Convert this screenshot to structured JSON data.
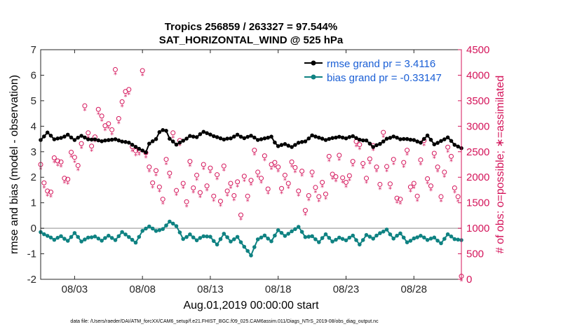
{
  "chart_data": {
    "type": "line",
    "title": "Tropics 256859 / 263327 = 97.544%",
    "subtitle": "SAT_HORIZONTAL_WIND @ 525 hPa",
    "xlabel": "Aug.01,2019 00:00:00 start",
    "ylabel": "rmse and bias (model - observation)",
    "ylabel_right": "# of obs: o=possible; ∗=assimilated",
    "xlim": [
      0.5,
      31.5
    ],
    "ylim": [
      -2,
      7
    ],
    "ylim_right": [
      0,
      4500
    ],
    "x_ticks": [
      {
        "value": 3,
        "label": "08/03"
      },
      {
        "value": 8,
        "label": "08/08"
      },
      {
        "value": 13,
        "label": "08/13"
      },
      {
        "value": 18,
        "label": "08/18"
      },
      {
        "value": 23,
        "label": "08/23"
      },
      {
        "value": 28,
        "label": "08/28"
      }
    ],
    "y_ticks": [
      "-2",
      "-1",
      "0",
      "1",
      "2",
      "3",
      "4",
      "5",
      "6",
      "7"
    ],
    "y_ticks_right": [
      "0",
      "500",
      "1000",
      "1500",
      "2000",
      "2500",
      "3000",
      "3500",
      "4000",
      "4500"
    ],
    "zero_line": 0,
    "grid": false,
    "legend_position": "top-right",
    "colors": {
      "rmse": "#000000",
      "bias": "#0f8282",
      "obs": "#d4145a",
      "legend_text": "#1a5fd6",
      "zero_line": "#b4b4b4"
    },
    "rmse_knots": [
      [
        0.5,
        3.5
      ],
      [
        1.0,
        3.75
      ],
      [
        1.5,
        3.45
      ],
      [
        2.0,
        3.55
      ],
      [
        2.5,
        3.7
      ],
      [
        3.0,
        3.45
      ],
      [
        3.5,
        3.6
      ],
      [
        4.0,
        3.5
      ],
      [
        4.5,
        3.5
      ],
      [
        5.0,
        3.4
      ],
      [
        5.5,
        3.45
      ],
      [
        6.0,
        3.5
      ],
      [
        6.5,
        3.4
      ],
      [
        7.0,
        3.35
      ],
      [
        7.5,
        3.2
      ],
      [
        8.0,
        3.05
      ],
      [
        8.2,
        2.9
      ],
      [
        8.5,
        3.3
      ],
      [
        9.0,
        3.5
      ],
      [
        9.3,
        3.85
      ],
      [
        9.7,
        3.9
      ],
      [
        10.0,
        3.5
      ],
      [
        10.5,
        3.25
      ],
      [
        11.0,
        3.45
      ],
      [
        11.5,
        3.65
      ],
      [
        12.0,
        3.55
      ],
      [
        12.5,
        3.75
      ],
      [
        13.0,
        3.7
      ],
      [
        13.5,
        3.6
      ],
      [
        14.0,
        3.45
      ],
      [
        14.5,
        3.5
      ],
      [
        15.0,
        3.7
      ],
      [
        15.5,
        3.55
      ],
      [
        16.0,
        3.6
      ],
      [
        16.5,
        3.45
      ],
      [
        17.0,
        3.55
      ],
      [
        17.5,
        3.6
      ],
      [
        17.8,
        3.3
      ],
      [
        18.0,
        3.2
      ],
      [
        18.5,
        3.3
      ],
      [
        19.0,
        3.2
      ],
      [
        19.5,
        3.35
      ],
      [
        20.0,
        3.4
      ],
      [
        20.5,
        3.65
      ],
      [
        21.0,
        3.55
      ],
      [
        21.5,
        3.45
      ],
      [
        22.0,
        3.55
      ],
      [
        22.5,
        3.6
      ],
      [
        23.0,
        3.5
      ],
      [
        23.5,
        3.6
      ],
      [
        24.0,
        3.5
      ],
      [
        24.5,
        3.45
      ],
      [
        25.0,
        3.15
      ],
      [
        25.5,
        3.3
      ],
      [
        26.0,
        3.55
      ],
      [
        26.5,
        3.6
      ],
      [
        27.0,
        3.45
      ],
      [
        27.5,
        3.5
      ],
      [
        28.0,
        3.5
      ],
      [
        28.5,
        3.35
      ],
      [
        29.0,
        3.6
      ],
      [
        29.5,
        3.3
      ],
      [
        30.0,
        3.45
      ],
      [
        30.5,
        3.55
      ],
      [
        31.0,
        3.25
      ],
      [
        31.5,
        3.15
      ]
    ],
    "bias_knots": [
      [
        0.5,
        -0.1
      ],
      [
        1.0,
        -0.3
      ],
      [
        1.5,
        -0.5
      ],
      [
        2.0,
        -0.3
      ],
      [
        2.5,
        -0.45
      ],
      [
        3.0,
        -0.2
      ],
      [
        3.5,
        -0.55
      ],
      [
        4.0,
        -0.35
      ],
      [
        4.5,
        -0.3
      ],
      [
        5.0,
        -0.5
      ],
      [
        5.5,
        -0.3
      ],
      [
        6.0,
        -0.45
      ],
      [
        6.5,
        -0.15
      ],
      [
        7.0,
        -0.35
      ],
      [
        7.5,
        -0.55
      ],
      [
        8.0,
        -0.1
      ],
      [
        8.5,
        0.05
      ],
      [
        9.0,
        -0.1
      ],
      [
        9.5,
        0.0
      ],
      [
        10.0,
        0.25
      ],
      [
        10.5,
        0.05
      ],
      [
        11.0,
        -0.4
      ],
      [
        11.5,
        -0.2
      ],
      [
        12.0,
        -0.5
      ],
      [
        12.5,
        -0.35
      ],
      [
        13.0,
        -0.3
      ],
      [
        13.5,
        -0.6
      ],
      [
        14.0,
        -0.25
      ],
      [
        14.5,
        -0.55
      ],
      [
        15.0,
        -0.3
      ],
      [
        15.5,
        -0.7
      ],
      [
        16.0,
        -1.1
      ],
      [
        16.5,
        -0.45
      ],
      [
        17.0,
        -0.25
      ],
      [
        17.5,
        -0.5
      ],
      [
        18.0,
        -0.1
      ],
      [
        18.5,
        -0.3
      ],
      [
        19.0,
        -0.1
      ],
      [
        19.5,
        0.05
      ],
      [
        20.0,
        -0.35
      ],
      [
        20.5,
        -0.3
      ],
      [
        21.0,
        -0.55
      ],
      [
        21.5,
        -0.25
      ],
      [
        22.0,
        -0.5
      ],
      [
        22.5,
        -0.35
      ],
      [
        23.0,
        -0.5
      ],
      [
        23.5,
        -0.3
      ],
      [
        24.0,
        -0.6
      ],
      [
        24.5,
        -0.25
      ],
      [
        25.0,
        -0.45
      ],
      [
        25.5,
        -0.2
      ],
      [
        26.0,
        0.0
      ],
      [
        26.5,
        -0.4
      ],
      [
        27.0,
        -0.25
      ],
      [
        27.5,
        -0.55
      ],
      [
        28.0,
        -0.35
      ],
      [
        28.5,
        -0.3
      ],
      [
        29.0,
        -0.5
      ],
      [
        29.5,
        -0.35
      ],
      [
        30.0,
        -0.55
      ],
      [
        30.5,
        -0.25
      ],
      [
        31.0,
        -0.45
      ],
      [
        31.5,
        -0.45
      ]
    ],
    "obs_possible": [
      [
        0.5,
        2250
      ],
      [
        0.75,
        1890
      ],
      [
        1.0,
        1730
      ],
      [
        1.25,
        1710
      ],
      [
        1.5,
        2380
      ],
      [
        1.75,
        2320
      ],
      [
        2.0,
        2300
      ],
      [
        2.25,
        1980
      ],
      [
        2.5,
        1960
      ],
      [
        2.75,
        2490
      ],
      [
        3.0,
        2390
      ],
      [
        3.25,
        2230
      ],
      [
        3.5,
        2660
      ],
      [
        3.75,
        3400
      ],
      [
        4.0,
        2870
      ],
      [
        4.25,
        2610
      ],
      [
        4.5,
        2790
      ],
      [
        4.75,
        3330
      ],
      [
        5.0,
        3200
      ],
      [
        5.25,
        3010
      ],
      [
        5.5,
        3050
      ],
      [
        5.75,
        2930
      ],
      [
        6.0,
        4110
      ],
      [
        6.25,
        3150
      ],
      [
        6.5,
        3480
      ],
      [
        6.75,
        3680
      ],
      [
        7.0,
        3720
      ],
      [
        7.25,
        2600
      ],
      [
        7.5,
        2520
      ],
      [
        7.75,
        2530
      ],
      [
        8.0,
        4090
      ],
      [
        8.25,
        2480
      ],
      [
        8.5,
        2200
      ],
      [
        8.75,
        1890
      ],
      [
        9.0,
        2130
      ],
      [
        9.25,
        1810
      ],
      [
        9.5,
        1570
      ],
      [
        9.75,
        2350
      ],
      [
        10.0,
        2080
      ],
      [
        10.25,
        2870
      ],
      [
        10.5,
        1740
      ],
      [
        10.75,
        2720
      ],
      [
        11.0,
        1880
      ],
      [
        11.25,
        1520
      ],
      [
        11.5,
        2310
      ],
      [
        11.75,
        1790
      ],
      [
        12.0,
        2040
      ],
      [
        12.25,
        1700
      ],
      [
        12.5,
        2250
      ],
      [
        12.75,
        1830
      ],
      [
        13.0,
        2180
      ],
      [
        13.25,
        1630
      ],
      [
        13.5,
        2050
      ],
      [
        13.75,
        1530
      ],
      [
        14.0,
        2220
      ],
      [
        14.25,
        1730
      ],
      [
        14.5,
        1880
      ],
      [
        14.75,
        1640
      ],
      [
        15.0,
        1910
      ],
      [
        15.25,
        1260
      ],
      [
        15.5,
        2020
      ],
      [
        15.75,
        1630
      ],
      [
        16.0,
        1940
      ],
      [
        16.25,
        2530
      ],
      [
        16.5,
        2100
      ],
      [
        16.75,
        1980
      ],
      [
        17.0,
        2420
      ],
      [
        17.25,
        1770
      ],
      [
        17.5,
        2250
      ],
      [
        17.75,
        2290
      ],
      [
        18.0,
        2200
      ],
      [
        18.25,
        1780
      ],
      [
        18.5,
        2040
      ],
      [
        18.75,
        1880
      ],
      [
        19.0,
        2300
      ],
      [
        19.25,
        2190
      ],
      [
        19.5,
        1730
      ],
      [
        19.75,
        2120
      ],
      [
        20.0,
        1350
      ],
      [
        20.25,
        1640
      ],
      [
        20.5,
        2100
      ],
      [
        20.75,
        1800
      ],
      [
        21.0,
        1620
      ],
      [
        21.25,
        1900
      ],
      [
        21.5,
        1670
      ],
      [
        21.75,
        2410
      ],
      [
        22.0,
        2060
      ],
      [
        22.25,
        2010
      ],
      [
        22.5,
        2430
      ],
      [
        22.75,
        1990
      ],
      [
        23.0,
        1900
      ],
      [
        23.25,
        2030
      ],
      [
        23.5,
        2310
      ],
      [
        23.75,
        2700
      ],
      [
        24.0,
        2640
      ],
      [
        24.25,
        2270
      ],
      [
        24.5,
        1980
      ],
      [
        24.75,
        2360
      ],
      [
        25.0,
        2620
      ],
      [
        25.25,
        2200
      ],
      [
        25.5,
        1860
      ],
      [
        25.75,
        2880
      ],
      [
        26.0,
        2210
      ],
      [
        26.25,
        1870
      ],
      [
        26.5,
        2350
      ],
      [
        26.75,
        1590
      ],
      [
        27.0,
        1570
      ],
      [
        27.25,
        2290
      ],
      [
        27.5,
        2530
      ],
      [
        27.75,
        1810
      ],
      [
        28.0,
        1880
      ],
      [
        28.25,
        1630
      ],
      [
        28.5,
        2340
      ],
      [
        28.75,
        2720
      ],
      [
        29.0,
        1970
      ],
      [
        29.25,
        1830
      ],
      [
        29.5,
        2470
      ],
      [
        29.75,
        2200
      ],
      [
        30.0,
        1620
      ],
      [
        30.25,
        2100
      ],
      [
        30.5,
        2590
      ],
      [
        30.75,
        2410
      ],
      [
        31.0,
        1790
      ],
      [
        31.25,
        1620
      ],
      [
        31.5,
        60
      ]
    ],
    "obs_assimilated_offset": -90
  },
  "legend": {
    "rmse": "rmse grand pr = 3.4116",
    "bias": "bias grand pr = -0.33147"
  },
  "footer": "data file: /Users/raeder/DAI/ATM_forcXX/CAM6_setup/f.e21.FHIST_BGC.f09_025.CAM6assim.011/Diags_NTrS_2019-08/obs_diag_output.nc"
}
